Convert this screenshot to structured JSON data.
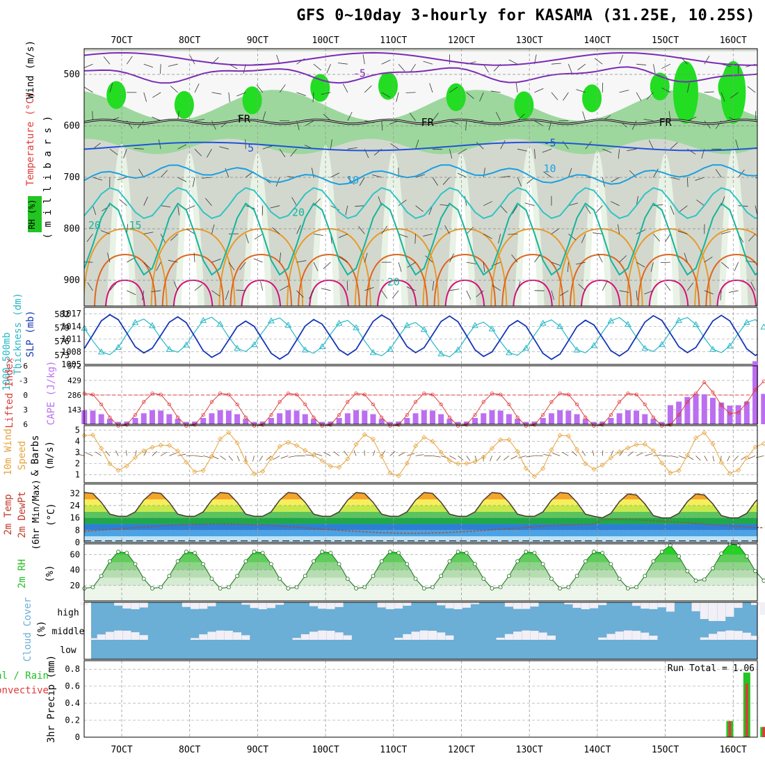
{
  "title": "GFS 0~10day 3-hourly for KASAMA (31.25E, 10.25S)",
  "date_ticks": [
    "7OCT",
    "8OCT",
    "9OCT",
    "10OCT",
    "11OCT",
    "12OCT",
    "13OCT",
    "14OCT",
    "15OCT",
    "16OCT"
  ],
  "colors": {
    "purple": "#7a2bb5",
    "blue1": "#1f54d6",
    "blue2": "#1aa0e0",
    "teal": "#13b59c",
    "teal2": "#2ec4c4",
    "orange": "#e89a2a",
    "orange2": "#e0661f",
    "magenta": "#d5127a",
    "navy": "#1635b8",
    "cyan": "#25b8c6",
    "red": "#e03a3a",
    "violet": "#bb6ff0",
    "tan": "#e6a33c",
    "darkgreen": "#24c024",
    "sky": "#6baed6",
    "frz": "#000000"
  },
  "chart_data": [
    {
      "type": "heatmap",
      "name": "upper_air",
      "legend_rh": "RH (%)",
      "legend_temp": "Temperature (°C)",
      "legend_wind": "Wind (m/s)",
      "ylabel": "( m i l l i b a r s )",
      "yticks": [
        500,
        600,
        700,
        800,
        900
      ],
      "ylim": [
        950,
        450
      ],
      "labels": [
        {
          "text": "-5",
          "x": 3.5,
          "p": 505,
          "c": "purple"
        },
        {
          "text": "FR",
          "x": 1.8,
          "p": 593,
          "c": "frz"
        },
        {
          "text": "FR",
          "x": 4.5,
          "p": 600,
          "c": "frz"
        },
        {
          "text": "FR",
          "x": 8.0,
          "p": 600,
          "c": "frz"
        },
        {
          "text": "5",
          "x": 1.9,
          "p": 650,
          "c": "blue1"
        },
        {
          "text": "-5",
          "x": 6.3,
          "p": 640,
          "c": "blue1"
        },
        {
          "text": "10",
          "x": 3.4,
          "p": 712,
          "c": "blue2"
        },
        {
          "text": "10",
          "x": 6.3,
          "p": 690,
          "c": "blue2"
        },
        {
          "text": "20",
          "x": 2.6,
          "p": 775,
          "c": "teal"
        },
        {
          "text": "20",
          "x": -0.4,
          "p": 800,
          "c": "teal"
        },
        {
          "text": "15",
          "x": 0.2,
          "p": 800,
          "c": "teal"
        },
        {
          "text": "20",
          "x": 4.0,
          "p": 910,
          "c": "teal"
        }
      ]
    },
    {
      "type": "line",
      "name": "thickness_slp",
      "label_a": "1000-500mb",
      "label_b": "Thickness (dm)",
      "label_c": "SLP (mb)",
      "ylim_thk": [
        571,
        583.5
      ],
      "ylim_slp": [
        1005,
        1018.5
      ],
      "yticks_thk": [
        573,
        576,
        579,
        582
      ],
      "yticks_slp": [
        1005,
        1008,
        1011,
        1014,
        1017
      ]
    },
    {
      "type": "bar",
      "name": "li_cape",
      "label_li": "Lifted Index",
      "label_cape": "CAPE (J/kg)",
      "yticks_li": [
        "6",
        "3",
        "0",
        "-3",
        "-6"
      ],
      "yticks_cape": [
        "143",
        "286",
        "429",
        "572"
      ],
      "ylim_cape": [
        0,
        572
      ]
    },
    {
      "type": "line",
      "name": "wind10m",
      "label_a": "10m Wind",
      "label_b": "Speed",
      "label_c": "& Barbs",
      "unit": "(m/s)",
      "yticks": [
        1,
        2,
        3,
        4,
        5
      ],
      "ylim": [
        0.3,
        5.4
      ]
    },
    {
      "type": "area",
      "name": "temp2m",
      "label_a": "2m Temp",
      "label_b": "2m DewPt",
      "label_c": "(6hr Min/Max)",
      "unit": "(°C)",
      "yticks": [
        0,
        8,
        16,
        24,
        32
      ],
      "ylim": [
        0,
        38
      ]
    },
    {
      "type": "area",
      "name": "rh2m",
      "label": "2m RH",
      "unit": "(%)",
      "yticks": [
        20,
        40,
        60
      ],
      "ylim": [
        0,
        74
      ]
    },
    {
      "type": "bar",
      "name": "cloud",
      "label": "Cloud Cover",
      "unit": "(%)",
      "levels": [
        "high",
        "middle",
        "low"
      ]
    },
    {
      "type": "bar",
      "name": "precip",
      "label_a": "Total / Rain",
      "label_b": "Convective",
      "ylabel": "3hr Precip (mm)",
      "run_total": "Run Total = 1.06",
      "yticks": [
        0,
        0.2,
        0.4,
        0.6,
        0.8
      ],
      "ylim": [
        0,
        0.9
      ],
      "bars": [
        {
          "x": 8.95,
          "total": 0.19,
          "conv": 0.19
        },
        {
          "x": 9.2,
          "total": 0.76,
          "conv": 0.63
        },
        {
          "x": 9.45,
          "total": 0.12,
          "conv": 0.12
        }
      ]
    }
  ]
}
